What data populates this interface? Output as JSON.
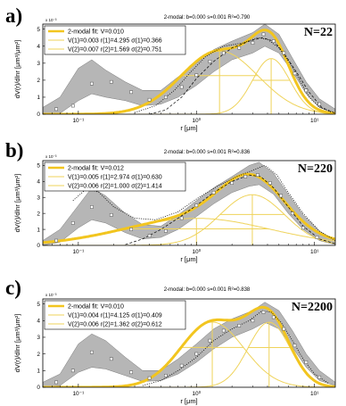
{
  "colors": {
    "fit": "#f2c51f",
    "component": "#efd35a",
    "band": "#a9a9a9",
    "model": "#000000",
    "data_marker": "#666666"
  },
  "chart_data": [
    {
      "type": "line",
      "letter": "a)",
      "title": "2-modal: b=0.000 s=0.001 R²=0.790",
      "n_label": "N=22",
      "xlabel": "r [μm]",
      "ylabel": "dV(r)/dlnr [μm³/μm²]",
      "y_exponent": "x 10⁻³",
      "xscale": "log",
      "xlim": [
        0.05,
        15
      ],
      "ylim": [
        0,
        5.3
      ],
      "xticks": [
        {
          "v": 0.1,
          "label": "10⁻¹"
        },
        {
          "v": 1,
          "label": "10⁰"
        },
        {
          "v": 10,
          "label": "10¹"
        }
      ],
      "yticks": [
        0,
        1,
        2,
        3,
        4,
        5
      ],
      "legend": [
        "2-modal fit: V=0.010",
        "V(1)=0.003 r(1)=4.295 σ(1)=0.366",
        "V(2)=0.007 r(2)=1.569 σ(2)=0.751"
      ],
      "components": [
        {
          "V": 0.003,
          "r": 4.295,
          "sigma": 0.366
        },
        {
          "V": 0.007,
          "r": 1.569,
          "sigma": 0.751
        }
      ],
      "points": [
        [
          0.065,
          0.3
        ],
        [
          0.09,
          0.5
        ],
        [
          0.13,
          1.8
        ],
        [
          0.19,
          1.9
        ],
        [
          0.28,
          1.3
        ],
        [
          0.4,
          0.85
        ],
        [
          0.55,
          1.0
        ],
        [
          0.75,
          1.6
        ],
        [
          1.0,
          2.3
        ],
        [
          1.3,
          3.1
        ],
        [
          1.7,
          3.6
        ],
        [
          2.3,
          3.9
        ],
        [
          3.0,
          4.2
        ],
        [
          3.7,
          4.7
        ],
        [
          4.5,
          4.3
        ],
        [
          5.5,
          3.6
        ],
        [
          6.8,
          2.4
        ],
        [
          8.5,
          1.4
        ],
        [
          11.0,
          0.6
        ]
      ],
      "band_upper": [
        [
          0.05,
          0.4
        ],
        [
          0.07,
          1.0
        ],
        [
          0.1,
          2.7
        ],
        [
          0.13,
          3.2
        ],
        [
          0.17,
          2.6
        ],
        [
          0.25,
          1.9
        ],
        [
          0.35,
          1.4
        ],
        [
          0.5,
          1.4
        ],
        [
          0.7,
          2.2
        ],
        [
          1.0,
          3.0
        ],
        [
          1.4,
          3.8
        ],
        [
          2.0,
          4.3
        ],
        [
          3.0,
          4.8
        ],
        [
          3.8,
          5.3
        ],
        [
          5.0,
          4.7
        ],
        [
          6.5,
          3.3
        ],
        [
          8.5,
          1.9
        ],
        [
          11.0,
          0.9
        ],
        [
          15.0,
          0.3
        ]
      ],
      "band_lower": [
        [
          0.05,
          0.0
        ],
        [
          0.07,
          0.05
        ],
        [
          0.1,
          0.8
        ],
        [
          0.13,
          1.2
        ],
        [
          0.17,
          1.0
        ],
        [
          0.25,
          0.8
        ],
        [
          0.35,
          0.5
        ],
        [
          0.5,
          0.6
        ],
        [
          0.7,
          1.0
        ],
        [
          1.0,
          1.7
        ],
        [
          1.4,
          2.5
        ],
        [
          2.0,
          3.2
        ],
        [
          3.0,
          3.6
        ],
        [
          3.8,
          4.0
        ],
        [
          5.0,
          3.6
        ],
        [
          6.5,
          2.5
        ],
        [
          8.5,
          1.2
        ],
        [
          11.0,
          0.4
        ],
        [
          15.0,
          0.1
        ]
      ],
      "dotted": [
        [
          0.3,
          0.1
        ],
        [
          0.45,
          0.5
        ],
        [
          0.65,
          1.4
        ],
        [
          0.9,
          2.5
        ],
        [
          1.2,
          3.4
        ],
        [
          1.7,
          4.0
        ],
        [
          2.5,
          4.2
        ],
        [
          3.3,
          4.5
        ],
        [
          4.0,
          4.4
        ],
        [
          5.0,
          3.9
        ],
        [
          6.2,
          3.0
        ],
        [
          7.5,
          2.0
        ],
        [
          9.0,
          1.0
        ],
        [
          11.0,
          0.4
        ],
        [
          14.0,
          0.1
        ]
      ],
      "dashed": [
        [
          0.4,
          0.0
        ],
        [
          0.55,
          0.25
        ],
        [
          0.75,
          1.0
        ],
        [
          1.0,
          2.1
        ],
        [
          1.4,
          3.1
        ],
        [
          2.0,
          3.9
        ],
        [
          2.8,
          4.3
        ],
        [
          3.6,
          4.5
        ],
        [
          4.5,
          4.3
        ],
        [
          5.5,
          3.6
        ],
        [
          7.0,
          2.5
        ],
        [
          9.0,
          1.3
        ],
        [
          11.5,
          0.4
        ],
        [
          15.0,
          0.05
        ]
      ]
    },
    {
      "type": "line",
      "letter": "b)",
      "title": "2-modal: b=0.000 s=0.001 R²=0.836",
      "n_label": "N=220",
      "xlabel": "r [μm]",
      "ylabel": "dV(r)/dlnr [μm³/μm²]",
      "y_exponent": "x 10⁻³",
      "xscale": "log",
      "xlim": [
        0.05,
        15
      ],
      "ylim": [
        0,
        5.3
      ],
      "xticks": [
        {
          "v": 0.1,
          "label": "10⁻¹"
        },
        {
          "v": 1,
          "label": "10⁰"
        },
        {
          "v": 10,
          "label": "10¹"
        }
      ],
      "yticks": [
        0,
        1,
        2,
        3,
        4,
        5
      ],
      "legend": [
        "2-modal fit: V=0.012",
        "V(1)=0.005 r(1)=2.974 σ(1)=0.630",
        "V(2)=0.006 r(2)=1.000 σ(2)=1.414"
      ],
      "components": [
        {
          "V": 0.005,
          "r": 2.974,
          "sigma": 0.63
        },
        {
          "V": 0.006,
          "r": 1.0,
          "sigma": 1.414
        }
      ],
      "points": [
        [
          0.065,
          0.3
        ],
        [
          0.09,
          1.4
        ],
        [
          0.13,
          2.4
        ],
        [
          0.19,
          1.9
        ],
        [
          0.28,
          1.0
        ],
        [
          0.4,
          0.6
        ],
        [
          0.55,
          0.9
        ],
        [
          0.75,
          1.7
        ],
        [
          1.0,
          2.5
        ],
        [
          1.4,
          3.3
        ],
        [
          2.0,
          3.9
        ],
        [
          2.6,
          4.3
        ],
        [
          3.3,
          4.4
        ],
        [
          4.2,
          3.9
        ],
        [
          5.2,
          3.1
        ],
        [
          6.5,
          2.0
        ],
        [
          8.0,
          1.1
        ],
        [
          10.5,
          0.5
        ]
      ],
      "band_upper": [
        [
          0.05,
          0.3
        ],
        [
          0.07,
          1.0
        ],
        [
          0.1,
          2.5
        ],
        [
          0.13,
          3.6
        ],
        [
          0.17,
          3.1
        ],
        [
          0.25,
          2.0
        ],
        [
          0.35,
          1.3
        ],
        [
          0.5,
          1.2
        ],
        [
          0.7,
          1.9
        ],
        [
          1.0,
          2.8
        ],
        [
          1.4,
          3.6
        ],
        [
          2.0,
          4.3
        ],
        [
          2.8,
          5.0
        ],
        [
          3.4,
          5.2
        ],
        [
          4.5,
          4.5
        ],
        [
          6.0,
          3.2
        ],
        [
          8.0,
          1.9
        ],
        [
          11.0,
          0.9
        ],
        [
          15.0,
          0.3
        ]
      ],
      "band_lower": [
        [
          0.05,
          0.0
        ],
        [
          0.07,
          0.2
        ],
        [
          0.1,
          1.1
        ],
        [
          0.13,
          1.6
        ],
        [
          0.17,
          1.4
        ],
        [
          0.25,
          0.8
        ],
        [
          0.35,
          0.4
        ],
        [
          0.5,
          0.5
        ],
        [
          0.7,
          1.0
        ],
        [
          1.0,
          1.8
        ],
        [
          1.4,
          2.6
        ],
        [
          2.0,
          3.3
        ],
        [
          2.8,
          3.7
        ],
        [
          3.4,
          3.8
        ],
        [
          4.5,
          3.2
        ],
        [
          6.0,
          2.0
        ],
        [
          8.0,
          1.0
        ],
        [
          11.0,
          0.3
        ],
        [
          15.0,
          0.05
        ]
      ],
      "dotted": [
        [
          0.09,
          2.8
        ],
        [
          0.12,
          3.6
        ],
        [
          0.15,
          3.3
        ],
        [
          0.2,
          2.4
        ],
        [
          0.3,
          1.7
        ],
        [
          0.45,
          1.6
        ],
        [
          0.7,
          2.1
        ],
        [
          1.0,
          2.9
        ],
        [
          1.5,
          3.7
        ],
        [
          2.2,
          4.3
        ],
        [
          3.0,
          4.7
        ],
        [
          3.8,
          5.0
        ],
        [
          4.8,
          4.4
        ],
        [
          6.0,
          3.3
        ],
        [
          8.0,
          2.0
        ],
        [
          11.0,
          0.9
        ],
        [
          15.0,
          0.3
        ]
      ],
      "dashed": [
        [
          0.25,
          0.05
        ],
        [
          0.35,
          0.4
        ],
        [
          0.5,
          1.0
        ],
        [
          0.7,
          1.7
        ],
        [
          1.0,
          2.5
        ],
        [
          1.4,
          3.3
        ],
        [
          2.0,
          4.0
        ],
        [
          2.8,
          4.4
        ],
        [
          3.5,
          4.3
        ],
        [
          4.5,
          3.6
        ],
        [
          6.0,
          2.4
        ],
        [
          8.0,
          1.2
        ],
        [
          11.0,
          0.4
        ],
        [
          15.0,
          0.1
        ]
      ]
    },
    {
      "type": "line",
      "letter": "c)",
      "title": "2-modal: b=0.000 s=0.001 R²=0.838",
      "n_label": "N=2200",
      "xlabel": "r [μm]",
      "ylabel": "dV(r)/dlnr [μm³/μm²]",
      "y_exponent": "x 10⁻³",
      "xscale": "log",
      "xlim": [
        0.05,
        15
      ],
      "ylim": [
        0,
        5.3
      ],
      "xticks": [
        {
          "v": 0.1,
          "label": "10⁻¹"
        },
        {
          "v": 1,
          "label": "10⁰"
        },
        {
          "v": 10,
          "label": "10¹"
        }
      ],
      "yticks": [
        0,
        1,
        2,
        3,
        4,
        5
      ],
      "legend": [
        "2-modal fit: V=0.010",
        "V(1)=0.004 r(1)=4.125 σ(1)=0.409",
        "V(2)=0.006 r(2)=1.362 σ(2)=0.612"
      ],
      "components": [
        {
          "V": 0.004,
          "r": 4.125,
          "sigma": 0.409
        },
        {
          "V": 0.006,
          "r": 1.362,
          "sigma": 0.612
        }
      ],
      "points": [
        [
          0.065,
          0.3
        ],
        [
          0.09,
          1.0
        ],
        [
          0.13,
          2.1
        ],
        [
          0.19,
          1.7
        ],
        [
          0.28,
          0.9
        ],
        [
          0.4,
          0.55
        ],
        [
          0.55,
          0.7
        ],
        [
          0.75,
          1.3
        ],
        [
          1.0,
          2.0
        ],
        [
          1.3,
          2.8
        ],
        [
          1.7,
          3.4
        ],
        [
          2.3,
          3.7
        ],
        [
          3.0,
          4.0
        ],
        [
          3.7,
          4.5
        ],
        [
          4.5,
          4.2
        ],
        [
          5.5,
          3.5
        ],
        [
          6.8,
          2.5
        ],
        [
          8.5,
          1.5
        ],
        [
          11.0,
          0.6
        ]
      ],
      "band_upper": [
        [
          0.05,
          0.3
        ],
        [
          0.07,
          0.8
        ],
        [
          0.1,
          2.6
        ],
        [
          0.13,
          3.2
        ],
        [
          0.17,
          2.8
        ],
        [
          0.25,
          1.8
        ],
        [
          0.35,
          1.0
        ],
        [
          0.5,
          1.0
        ],
        [
          0.7,
          1.7
        ],
        [
          1.0,
          2.6
        ],
        [
          1.4,
          3.5
        ],
        [
          2.0,
          4.1
        ],
        [
          3.0,
          4.6
        ],
        [
          3.8,
          5.1
        ],
        [
          5.0,
          4.6
        ],
        [
          6.5,
          3.4
        ],
        [
          8.5,
          2.0
        ],
        [
          11.0,
          1.0
        ],
        [
          15.0,
          0.3
        ]
      ],
      "band_lower": [
        [
          0.05,
          0.0
        ],
        [
          0.07,
          0.1
        ],
        [
          0.1,
          0.9
        ],
        [
          0.13,
          1.2
        ],
        [
          0.17,
          1.1
        ],
        [
          0.25,
          0.7
        ],
        [
          0.35,
          0.35
        ],
        [
          0.5,
          0.4
        ],
        [
          0.7,
          0.8
        ],
        [
          1.0,
          1.5
        ],
        [
          1.4,
          2.3
        ],
        [
          2.0,
          3.0
        ],
        [
          3.0,
          3.5
        ],
        [
          3.8,
          3.9
        ],
        [
          5.0,
          3.5
        ],
        [
          6.5,
          2.4
        ],
        [
          8.5,
          1.2
        ],
        [
          11.0,
          0.4
        ],
        [
          15.0,
          0.1
        ]
      ],
      "dotted": [
        [
          0.35,
          0.1
        ],
        [
          0.5,
          0.4
        ],
        [
          0.7,
          1.0
        ],
        [
          1.0,
          1.8
        ],
        [
          1.4,
          2.8
        ],
        [
          2.0,
          3.5
        ],
        [
          2.8,
          4.0
        ],
        [
          3.6,
          4.6
        ],
        [
          4.3,
          4.5
        ],
        [
          5.2,
          3.9
        ],
        [
          6.5,
          2.8
        ],
        [
          8.0,
          1.7
        ],
        [
          10.0,
          0.8
        ],
        [
          13.0,
          0.25
        ]
      ],
      "dashed": []
    }
  ]
}
